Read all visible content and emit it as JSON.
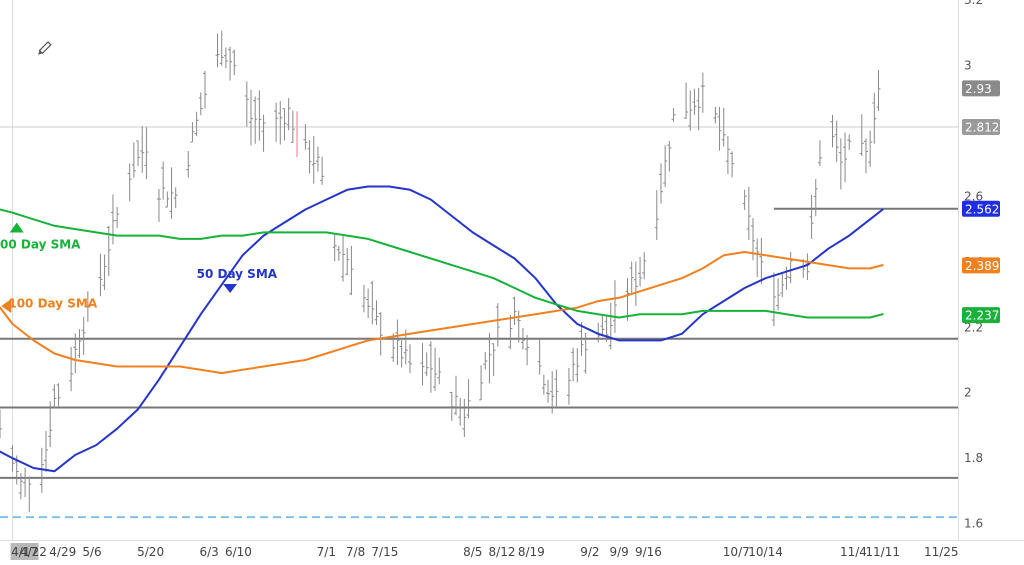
{
  "chart_data": {
    "type": "line",
    "y_axis": {
      "min": 1.55,
      "max": 3.2,
      "ticks": [
        1.6,
        1.8,
        2.0,
        2.2,
        2.4,
        2.6,
        2.8,
        3.0,
        3.2
      ],
      "tick_labels": [
        "1.6",
        "1.8",
        "2",
        "2.2",
        "2.4",
        "2.6",
        "2.8",
        "3",
        "3.2"
      ],
      "position": "right"
    },
    "x_axis": {
      "ticks": [
        {
          "label": "4/17",
          "day": 0,
          "highlighted": true
        },
        {
          "label": "4/22",
          "day": 5
        },
        {
          "label": "4/29",
          "day": 12
        },
        {
          "label": "5/6",
          "day": 19
        },
        {
          "label": "5/20",
          "day": 33
        },
        {
          "label": "6/3",
          "day": 47
        },
        {
          "label": "6/10",
          "day": 54
        },
        {
          "label": "7/1",
          "day": 75
        },
        {
          "label": "7/8",
          "day": 82
        },
        {
          "label": "7/15",
          "day": 89
        },
        {
          "label": "8/5",
          "day": 110
        },
        {
          "label": "8/12",
          "day": 117
        },
        {
          "label": "8/19",
          "day": 124
        },
        {
          "label": "9/2",
          "day": 138
        },
        {
          "label": "9/9",
          "day": 145
        },
        {
          "label": "9/16",
          "day": 152
        },
        {
          "label": "10/7",
          "day": 173
        },
        {
          "label": "10/14",
          "day": 180
        },
        {
          "label": "11/4",
          "day": 201
        },
        {
          "label": "11/11",
          "day": 208
        },
        {
          "label": "11/25",
          "day": 222
        }
      ],
      "day_range": [
        -3,
        226
      ]
    },
    "price_bars": {
      "color": "#888888",
      "waypoints": [
        [
          -3,
          1.89
        ],
        [
          2,
          1.72
        ],
        [
          5,
          1.75
        ],
        [
          8,
          1.83
        ],
        [
          10,
          1.98
        ],
        [
          13,
          2.02
        ],
        [
          16,
          2.18
        ],
        [
          20,
          2.3
        ],
        [
          24,
          2.5
        ],
        [
          28,
          2.67
        ],
        [
          33,
          2.78
        ],
        [
          35,
          2.62
        ],
        [
          40,
          2.6
        ],
        [
          43,
          2.78
        ],
        [
          47,
          2.96
        ],
        [
          50,
          3.05
        ],
        [
          54,
          2.98
        ],
        [
          57,
          2.84
        ],
        [
          62,
          2.82
        ],
        [
          66,
          2.86
        ],
        [
          69,
          2.75
        ],
        [
          73,
          2.7
        ],
        [
          77,
          2.45
        ],
        [
          81,
          2.4
        ],
        [
          85,
          2.25
        ],
        [
          89,
          2.18
        ],
        [
          93,
          2.12
        ],
        [
          97,
          2.05
        ],
        [
          100,
          2.08
        ],
        [
          104,
          2.0
        ],
        [
          108,
          1.94
        ],
        [
          112,
          2.06
        ],
        [
          116,
          2.18
        ],
        [
          120,
          2.24
        ],
        [
          124,
          2.14
        ],
        [
          128,
          2.02
        ],
        [
          131,
          1.96
        ],
        [
          134,
          2.08
        ],
        [
          138,
          2.18
        ],
        [
          142,
          2.18
        ],
        [
          146,
          2.3
        ],
        [
          150,
          2.36
        ],
        [
          154,
          2.56
        ],
        [
          158,
          2.84
        ],
        [
          162,
          2.88
        ],
        [
          166,
          2.92
        ],
        [
          170,
          2.76
        ],
        [
          173,
          2.68
        ],
        [
          176,
          2.52
        ],
        [
          179,
          2.38
        ],
        [
          183,
          2.3
        ],
        [
          187,
          2.45
        ],
        [
          190,
          2.38
        ],
        [
          194,
          2.85
        ],
        [
          198,
          2.7
        ],
        [
          201,
          2.76
        ],
        [
          204,
          2.72
        ],
        [
          207,
          2.93
        ]
      ]
    },
    "pink_bar": {
      "day": 68,
      "high": 2.86,
      "low": 2.72,
      "color": "#f4a6b4"
    },
    "series": [
      {
        "name": "50 Day SMA",
        "color": "#2435c8",
        "points": [
          [
            -3,
            1.82
          ],
          [
            0,
            1.8
          ],
          [
            5,
            1.77
          ],
          [
            10,
            1.76
          ],
          [
            15,
            1.81
          ],
          [
            20,
            1.84
          ],
          [
            25,
            1.89
          ],
          [
            30,
            1.95
          ],
          [
            35,
            2.04
          ],
          [
            40,
            2.14
          ],
          [
            45,
            2.24
          ],
          [
            50,
            2.33
          ],
          [
            55,
            2.42
          ],
          [
            60,
            2.48
          ],
          [
            65,
            2.52
          ],
          [
            70,
            2.56
          ],
          [
            75,
            2.59
          ],
          [
            80,
            2.62
          ],
          [
            85,
            2.63
          ],
          [
            90,
            2.63
          ],
          [
            95,
            2.62
          ],
          [
            100,
            2.59
          ],
          [
            105,
            2.54
          ],
          [
            110,
            2.49
          ],
          [
            115,
            2.45
          ],
          [
            120,
            2.41
          ],
          [
            125,
            2.35
          ],
          [
            130,
            2.27
          ],
          [
            135,
            2.21
          ],
          [
            140,
            2.18
          ],
          [
            145,
            2.16
          ],
          [
            150,
            2.16
          ],
          [
            155,
            2.16
          ],
          [
            160,
            2.18
          ],
          [
            165,
            2.24
          ],
          [
            170,
            2.28
          ],
          [
            175,
            2.32
          ],
          [
            180,
            2.35
          ],
          [
            185,
            2.37
          ],
          [
            190,
            2.39
          ],
          [
            195,
            2.44
          ],
          [
            200,
            2.48
          ],
          [
            205,
            2.53
          ],
          [
            208,
            2.56
          ]
        ]
      },
      {
        "name": "100 Day SMA",
        "color": "#f08020",
        "points": [
          [
            -3,
            2.26
          ],
          [
            0,
            2.21
          ],
          [
            5,
            2.16
          ],
          [
            10,
            2.12
          ],
          [
            15,
            2.1
          ],
          [
            20,
            2.09
          ],
          [
            25,
            2.08
          ],
          [
            30,
            2.08
          ],
          [
            35,
            2.08
          ],
          [
            40,
            2.08
          ],
          [
            45,
            2.07
          ],
          [
            50,
            2.06
          ],
          [
            55,
            2.07
          ],
          [
            60,
            2.08
          ],
          [
            65,
            2.09
          ],
          [
            70,
            2.1
          ],
          [
            75,
            2.12
          ],
          [
            80,
            2.14
          ],
          [
            85,
            2.16
          ],
          [
            90,
            2.17
          ],
          [
            95,
            2.18
          ],
          [
            100,
            2.19
          ],
          [
            105,
            2.2
          ],
          [
            110,
            2.21
          ],
          [
            115,
            2.22
          ],
          [
            120,
            2.23
          ],
          [
            125,
            2.24
          ],
          [
            130,
            2.25
          ],
          [
            135,
            2.26
          ],
          [
            140,
            2.28
          ],
          [
            145,
            2.29
          ],
          [
            150,
            2.31
          ],
          [
            155,
            2.33
          ],
          [
            160,
            2.35
          ],
          [
            165,
            2.38
          ],
          [
            170,
            2.42
          ],
          [
            175,
            2.43
          ],
          [
            180,
            2.42
          ],
          [
            185,
            2.41
          ],
          [
            190,
            2.4
          ],
          [
            195,
            2.39
          ],
          [
            200,
            2.38
          ],
          [
            205,
            2.38
          ],
          [
            208,
            2.39
          ]
        ]
      },
      {
        "name": "200 Day SMA",
        "color": "#18b23a",
        "points": [
          [
            -3,
            2.56
          ],
          [
            0,
            2.55
          ],
          [
            5,
            2.53
          ],
          [
            10,
            2.51
          ],
          [
            15,
            2.5
          ],
          [
            20,
            2.49
          ],
          [
            25,
            2.48
          ],
          [
            30,
            2.48
          ],
          [
            35,
            2.48
          ],
          [
            40,
            2.47
          ],
          [
            45,
            2.47
          ],
          [
            50,
            2.48
          ],
          [
            55,
            2.48
          ],
          [
            60,
            2.49
          ],
          [
            65,
            2.49
          ],
          [
            70,
            2.49
          ],
          [
            75,
            2.49
          ],
          [
            80,
            2.48
          ],
          [
            85,
            2.47
          ],
          [
            90,
            2.45
          ],
          [
            95,
            2.43
          ],
          [
            100,
            2.41
          ],
          [
            105,
            2.39
          ],
          [
            110,
            2.37
          ],
          [
            115,
            2.35
          ],
          [
            120,
            2.32
          ],
          [
            125,
            2.29
          ],
          [
            130,
            2.27
          ],
          [
            135,
            2.25
          ],
          [
            140,
            2.24
          ],
          [
            145,
            2.23
          ],
          [
            150,
            2.24
          ],
          [
            155,
            2.24
          ],
          [
            160,
            2.24
          ],
          [
            165,
            2.25
          ],
          [
            170,
            2.25
          ],
          [
            175,
            2.25
          ],
          [
            180,
            2.25
          ],
          [
            185,
            2.24
          ],
          [
            190,
            2.23
          ],
          [
            195,
            2.23
          ],
          [
            200,
            2.23
          ],
          [
            205,
            2.23
          ],
          [
            208,
            2.24
          ]
        ]
      }
    ],
    "horizontal_lines": [
      {
        "value": 2.812,
        "color": "#cccccc",
        "width": 1,
        "style": "solid",
        "from_day": -3
      },
      {
        "value": 2.562,
        "color": "#777777",
        "width": 2,
        "style": "solid",
        "from_day": 182
      },
      {
        "value": 2.165,
        "color": "#777777",
        "width": 2,
        "style": "solid",
        "from_day": -3
      },
      {
        "value": 1.955,
        "color": "#777777",
        "width": 2,
        "style": "solid",
        "from_day": -3
      },
      {
        "value": 1.74,
        "color": "#777777",
        "width": 2,
        "style": "solid",
        "from_day": -3
      },
      {
        "value": 1.62,
        "color": "#7ec3ef",
        "width": 2,
        "style": "dashed",
        "from_day": -3
      }
    ],
    "vertical_lines": [
      {
        "day": 0,
        "color": "#dddddd"
      }
    ],
    "price_labels": [
      {
        "value": 2.93,
        "text": "2.93",
        "bg": "#8a8a8a",
        "fg": "#ffffff"
      },
      {
        "value": 2.812,
        "text": "2.812",
        "bg": "#9a9a9a",
        "fg": "#ffffff"
      },
      {
        "value": 2.562,
        "text": "2.562",
        "bg": "#1f2ee0",
        "fg": "#ffffff"
      },
      {
        "value": 2.389,
        "text": "2.389",
        "bg": "#f08020",
        "fg": "#ffffff"
      },
      {
        "value": 2.237,
        "text": "2.237",
        "bg": "#18b23a",
        "fg": "#ffffff"
      }
    ],
    "annotations": [
      {
        "text": "00 Day SMA",
        "color": "#18b23a",
        "day": -3,
        "value": 2.44,
        "marker": "triangle-up",
        "marker_day": 1,
        "marker_value": 2.505
      },
      {
        "text": "50 Day SMA",
        "color": "#2435c8",
        "day": 44,
        "value": 2.35,
        "marker": "triangle-down",
        "marker_day": 52,
        "marker_value": 2.32
      },
      {
        "text": "100  Day SMA",
        "color": "#f08020",
        "day": -1,
        "value": 2.26,
        "marker": "triangle-left",
        "marker_day": -1.5,
        "marker_value": 2.265
      }
    ],
    "legend": "none",
    "grid": false
  }
}
